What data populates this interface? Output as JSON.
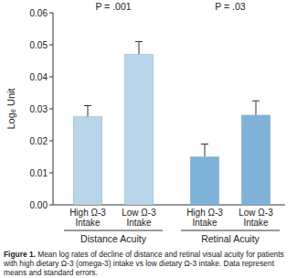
{
  "chart_data": {
    "type": "bar",
    "y_label": "Logₑ Unit",
    "categories": [
      "High Ω-3 Intake",
      "Low Ω-3 Intake",
      "High Ω-3 Intake",
      "Low Ω-3 Intake"
    ],
    "values": [
      0.0275,
      0.047,
      0.015,
      0.028
    ],
    "errors": [
      0.0035,
      0.004,
      0.004,
      0.0045
    ],
    "colors": [
      "#b9d5ea",
      "#b9d5ea",
      "#7eb2d8",
      "#7eb2d8"
    ],
    "groups": [
      {
        "name": "Distance Acuity",
        "p_value": "P = .001"
      },
      {
        "name": "Retinal Acuity",
        "p_value": "P = .03"
      }
    ],
    "ylim": [
      0,
      0.06
    ],
    "yticks": [
      {
        "value": 0,
        "label": "0.00"
      },
      {
        "value": 0.01,
        "label": "0.01"
      },
      {
        "value": 0.02,
        "label": "0.02"
      },
      {
        "value": 0.03,
        "label": "0.03"
      },
      {
        "value": 0.04,
        "label": "0.04"
      },
      {
        "value": 0.05,
        "label": "0.05"
      },
      {
        "value": 0.06,
        "label": "0.06"
      }
    ],
    "grid": false,
    "caption": {
      "label": "Figure 1.",
      "text": "Mean log rates of decline of distance and retinal visual acuity for patients with high dietary Ω-3 (omega-3) intake vs low dietary Ω-3 intake. Data represent means and standard errors."
    }
  }
}
